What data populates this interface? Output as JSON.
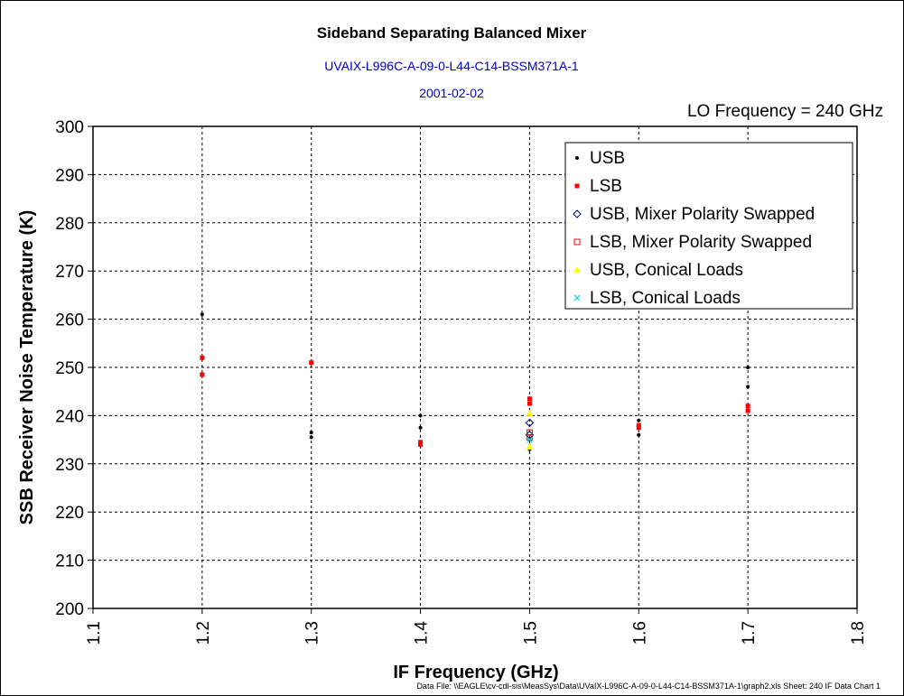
{
  "chart_data": {
    "type": "scatter",
    "title": "Sideband Separating Balanced Mixer",
    "subtitle_lines": [
      "UVAIX-L996C-A-09-0-L44-C14-BSSM371A-1",
      "2001-02-02"
    ],
    "annotation": "LO Frequency = 240 GHz",
    "xlabel": "IF Frequency (GHz)",
    "ylabel": "SSB Receiver Noise Temperature (K)",
    "xlim": [
      1.1,
      1.8
    ],
    "ylim": [
      200,
      300
    ],
    "x_ticks": [
      "1.1",
      "1.2",
      "1.3",
      "1.4",
      "1.5",
      "1.6",
      "1.7",
      "1.8"
    ],
    "y_ticks": [
      "300",
      "290",
      "280",
      "270",
      "260",
      "250",
      "240",
      "230",
      "220",
      "210",
      "200"
    ],
    "grid": true,
    "legend_position": "top-right",
    "footer": "Data File: \\\\EAGLE\\cv-cdl-sis\\MeasSys\\Data\\UVaIX-L996C-A-09-0-L44-C14-BSSM371A-1\\graph2.xls  Sheet: 240 IF Data Chart 1",
    "series": [
      {
        "name": "USB",
        "marker": "dot",
        "color": "#000000",
        "points": [
          [
            1.2,
            261.0
          ],
          [
            1.3,
            236.5
          ],
          [
            1.3,
            235.5
          ],
          [
            1.4,
            240.0
          ],
          [
            1.4,
            237.5
          ],
          [
            1.5,
            233.0
          ],
          [
            1.6,
            236.0
          ],
          [
            1.6,
            239.0
          ],
          [
            1.7,
            250.0
          ],
          [
            1.7,
            246.0
          ]
        ]
      },
      {
        "name": "LSB",
        "marker": "square",
        "color": "#ff0000",
        "points": [
          [
            1.2,
            252.0
          ],
          [
            1.2,
            248.5
          ],
          [
            1.3,
            251.0
          ],
          [
            1.4,
            234.5
          ],
          [
            1.4,
            234.0
          ],
          [
            1.5,
            243.5
          ],
          [
            1.5,
            242.5
          ],
          [
            1.6,
            238.0
          ],
          [
            1.6,
            237.5
          ],
          [
            1.7,
            242.0
          ],
          [
            1.7,
            241.0
          ]
        ]
      },
      {
        "name": "USB, Mixer Polarity Swapped",
        "marker": "diamond-open",
        "color": "#000080",
        "points": [
          [
            1.5,
            238.5
          ],
          [
            1.5,
            236.0
          ]
        ]
      },
      {
        "name": "LSB, Mixer Polarity Swapped",
        "marker": "square-open",
        "color": "#ff0000",
        "points": [
          [
            1.5,
            236.5
          ],
          [
            1.5,
            235.5
          ]
        ]
      },
      {
        "name": "USB, Conical Loads",
        "marker": "triangle",
        "color": "#ffff00",
        "points": [
          [
            1.5,
            240.5
          ],
          [
            1.5,
            233.5
          ]
        ]
      },
      {
        "name": "LSB, Conical Loads",
        "marker": "cross",
        "color": "#00cccc",
        "points": [
          [
            1.5,
            235.0
          ]
        ]
      }
    ]
  }
}
